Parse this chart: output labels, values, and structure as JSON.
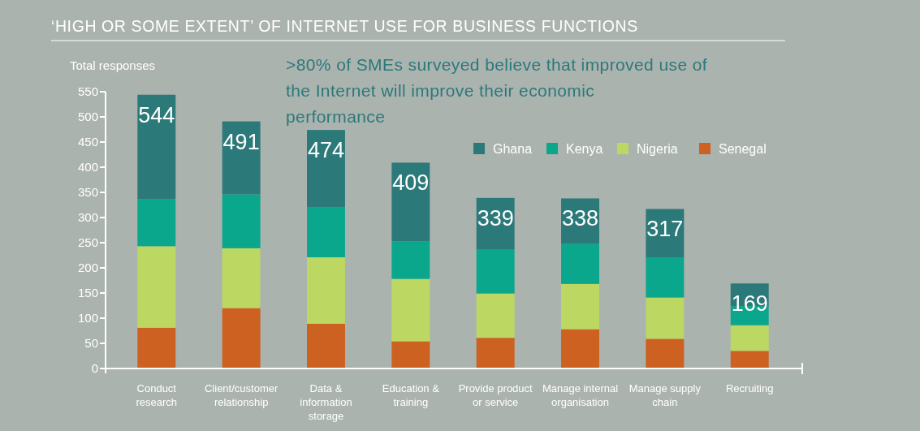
{
  "chart_data": {
    "type": "bar",
    "stacked": true,
    "title": "‘HIGH OR SOME EXTENT’ OF INTERNET USE FOR BUSINESS FUNCTIONS",
    "subtitle": ">80% of SMEs surveyed believe that improved use of the Internet will improve their economic performance",
    "ylabel": "Total responses",
    "categories": [
      "Conduct research",
      "Client/customer relationship",
      "Data & information storage",
      "Education & training",
      "Provide product or service",
      "Manage internal organisation",
      "Manage supply chain",
      "Recruiting"
    ],
    "series": [
      {
        "name": "Senegal",
        "color": "#cc6122",
        "values": [
          81,
          120,
          89,
          54,
          61,
          78,
          59,
          35
        ]
      },
      {
        "name": "Nigeria",
        "color": "#bdd763",
        "values": [
          162,
          119,
          132,
          124,
          88,
          90,
          82,
          51
        ]
      },
      {
        "name": "Kenya",
        "color": "#0aa78c",
        "values": [
          94,
          107,
          99,
          75,
          87,
          80,
          80,
          38
        ]
      },
      {
        "name": "Ghana",
        "color": "#2c797a",
        "values": [
          207,
          145,
          154,
          156,
          103,
          90,
          96,
          45
        ]
      }
    ],
    "totals": [
      "544",
      "491",
      "474",
      "409",
      "339",
      "338",
      "317",
      "169"
    ],
    "ylim": [
      0,
      550
    ],
    "yticks": [
      0,
      50,
      100,
      150,
      200,
      250,
      300,
      350,
      400,
      450,
      500,
      550
    ],
    "grid": false,
    "legend": "top right"
  }
}
